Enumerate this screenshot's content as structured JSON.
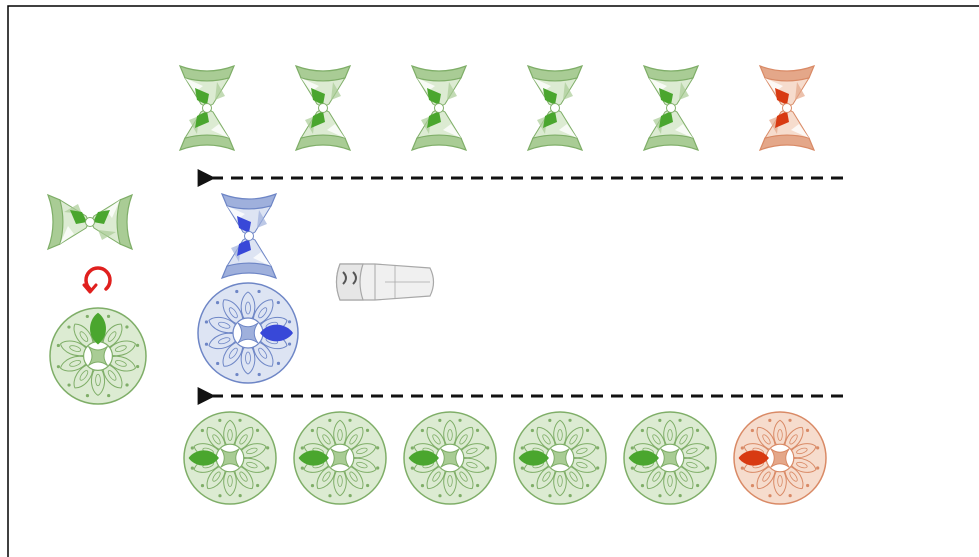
{
  "colors": {
    "green_light": "#dcebd2",
    "green_mid": "#a9cc95",
    "green_line": "#7fae68",
    "green_dark": "#4aa62e",
    "red_light": "#f6dccd",
    "red_mid": "#e4a789",
    "red_line": "#d98a66",
    "red_dark": "#d83a12",
    "blue_light": "#dde4f3",
    "blue_mid": "#9fb0dc",
    "blue_line": "#6e86c6",
    "blue_dark": "#3848d8",
    "grey_light": "#f0f0f0",
    "grey_line": "#a8a8a8",
    "arrow": "#111111",
    "rotate_arrow": "#e0201e",
    "frame": "#000000"
  },
  "icons": {
    "rotation": "counterclockwise-rotation-icon",
    "arrow": "dashed-left-arrow"
  },
  "top_row": {
    "dots": [
      {
        "tone": "green"
      },
      {
        "tone": "green"
      },
      {
        "tone": "green"
      },
      {
        "tone": "green"
      },
      {
        "tone": "green"
      },
      {
        "tone": "red"
      }
    ]
  },
  "bottom_row": {
    "discs": [
      {
        "tone": "green"
      },
      {
        "tone": "green"
      },
      {
        "tone": "green"
      },
      {
        "tone": "green"
      },
      {
        "tone": "green"
      },
      {
        "tone": "red"
      }
    ]
  },
  "left_group": {
    "dot_tone": "green",
    "disc_tone": "green",
    "dot_orientation": "horizontal",
    "disc_petal": "top"
  },
  "middle_group": {
    "dot_tone": "blue",
    "disc_tone": "blue",
    "dot_orientation": "vertical",
    "disc_petal": "right"
  },
  "ghost": {
    "tone": "grey"
  }
}
